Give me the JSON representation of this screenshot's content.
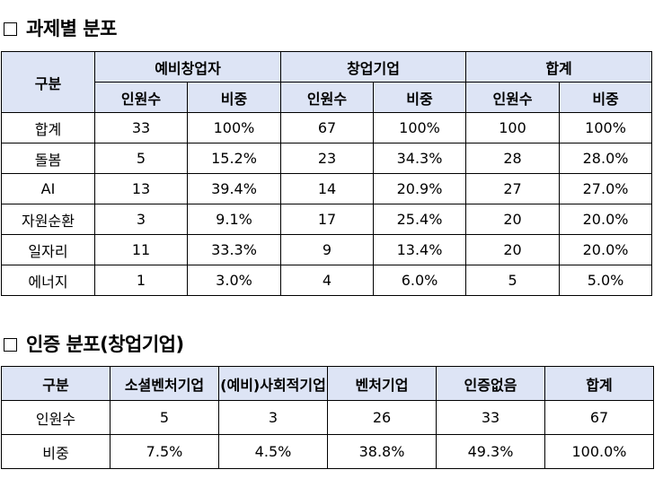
{
  "section1": {
    "title": "과제별 분포",
    "header": {
      "category": "구분",
      "groups": [
        "예비창업자",
        "창업기업",
        "합계"
      ],
      "sub": [
        "인원수",
        "비중",
        "인원수",
        "비중",
        "인원수",
        "비중"
      ]
    },
    "rows": [
      [
        "합계",
        "33",
        "100%",
        "67",
        "100%",
        "100",
        "100%"
      ],
      [
        "돌봄",
        "5",
        "15.2%",
        "23",
        "34.3%",
        "28",
        "28.0%"
      ],
      [
        "AI",
        "13",
        "39.4%",
        "14",
        "20.9%",
        "27",
        "27.0%"
      ],
      [
        "자원순환",
        "3",
        "9.1%",
        "17",
        "25.4%",
        "20",
        "20.0%"
      ],
      [
        "일자리",
        "11",
        "33.3%",
        "9",
        "13.4%",
        "20",
        "20.0%"
      ],
      [
        "에너지",
        "1",
        "3.0%",
        "4",
        "6.0%",
        "5",
        "5.0%"
      ]
    ]
  },
  "section2": {
    "title": "인증 분포(창업기업)",
    "header": [
      "구분",
      "소셜벤처기업",
      "(예비)사회적기업",
      "벤처기업",
      "인증없음",
      "합계"
    ],
    "rows": [
      [
        "인원수",
        "5",
        "3",
        "26",
        "33",
        "67"
      ],
      [
        "비중",
        "7.5%",
        "4.5%",
        "38.8%",
        "49.3%",
        "100.0%"
      ]
    ]
  },
  "colors": {
    "header_bg": "#dde4f5",
    "border": "#000000"
  }
}
